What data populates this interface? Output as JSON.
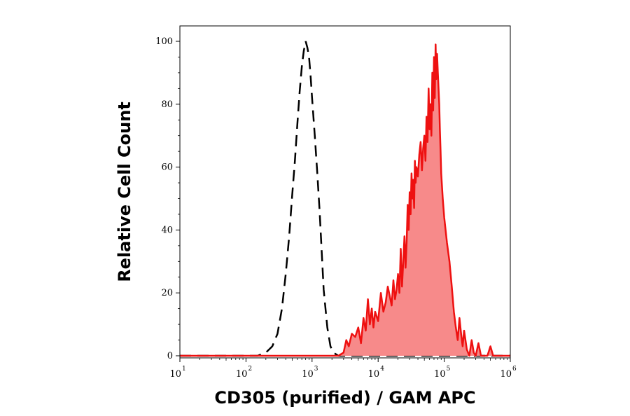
{
  "chart_data": {
    "type": "area",
    "xlabel": "CD305 (purified) / GAM APC",
    "ylabel": "Relative Cell Count",
    "x_scale": "log",
    "xlim": [
      10,
      1000000
    ],
    "ylim": [
      0,
      100
    ],
    "x_ticks": [
      {
        "base": "10",
        "exp": "1",
        "value": 10
      },
      {
        "base": "10",
        "exp": "2",
        "value": 100
      },
      {
        "base": "10",
        "exp": "3",
        "value": 1000
      },
      {
        "base": "10",
        "exp": "4",
        "value": 10000
      },
      {
        "base": "10",
        "exp": "5",
        "value": 100000
      },
      {
        "base": "10",
        "exp": "6",
        "value": 1000000
      }
    ],
    "y_ticks": [
      "0",
      "20",
      "40",
      "60",
      "80",
      "100"
    ],
    "series": [
      {
        "style": "dashed",
        "color": "#000000",
        "x": [
          10,
          150,
          200,
          250,
          300,
          350,
          400,
          450,
          500,
          550,
          600,
          650,
          700,
          750,
          800,
          850,
          900,
          950,
          1000,
          1100,
          1200,
          1300,
          1400,
          1500,
          1700,
          1900,
          2100,
          2500,
          5000,
          1000000
        ],
        "y": [
          0,
          0,
          1,
          3,
          7,
          15,
          26,
          38,
          51,
          62,
          74,
          84,
          92,
          97,
          100,
          98,
          95,
          89,
          82,
          70,
          58,
          46,
          33,
          21,
          9,
          3,
          1,
          0,
          0,
          0
        ]
      },
      {
        "style": "filled",
        "color": "#ee1111",
        "fill": "#f78a8a",
        "x": [
          10,
          2500,
          3000,
          3300,
          3600,
          4000,
          4500,
          5000,
          5500,
          6000,
          6500,
          7000,
          7500,
          8000,
          8500,
          9000,
          10000,
          11000,
          12000,
          13000,
          14000,
          15000,
          16000,
          17000,
          18000,
          19000,
          20000,
          21000,
          22000,
          23000,
          24000,
          25000,
          26000,
          27000,
          28000,
          29000,
          30000,
          31000,
          32000,
          33000,
          34000,
          35000,
          36000,
          37000,
          38000,
          40000,
          42000,
          44000,
          46000,
          48000,
          50000,
          52000,
          54000,
          56000,
          58000,
          60000,
          62000,
          64000,
          66000,
          68000,
          70000,
          72000,
          74000,
          76000,
          78000,
          80000,
          82000,
          84000,
          86000,
          88000,
          90000,
          95000,
          100000,
          110000,
          120000,
          130000,
          140000,
          150000,
          160000,
          170000,
          180000,
          190000,
          200000,
          220000,
          240000,
          260000,
          280000,
          300000,
          330000,
          360000,
          400000,
          450000,
          500000,
          550000,
          600000,
          1000000
        ],
        "y": [
          0,
          0,
          1,
          5,
          3,
          7,
          6,
          9,
          4,
          12,
          8,
          18,
          10,
          15,
          9,
          14,
          11,
          20,
          14,
          17,
          22,
          19,
          16,
          24,
          18,
          21,
          26,
          20,
          34,
          22,
          30,
          38,
          28,
          36,
          48,
          40,
          52,
          45,
          58,
          50,
          56,
          47,
          62,
          55,
          60,
          57,
          64,
          68,
          59,
          66,
          70,
          62,
          76,
          68,
          85,
          72,
          80,
          70,
          90,
          78,
          95,
          82,
          99,
          88,
          96,
          90,
          85,
          80,
          72,
          65,
          58,
          50,
          44,
          36,
          30,
          22,
          14,
          9,
          5,
          12,
          7,
          3,
          8,
          2,
          0,
          5,
          1,
          0,
          4,
          0,
          0,
          0,
          3,
          0,
          0,
          0
        ]
      }
    ]
  }
}
